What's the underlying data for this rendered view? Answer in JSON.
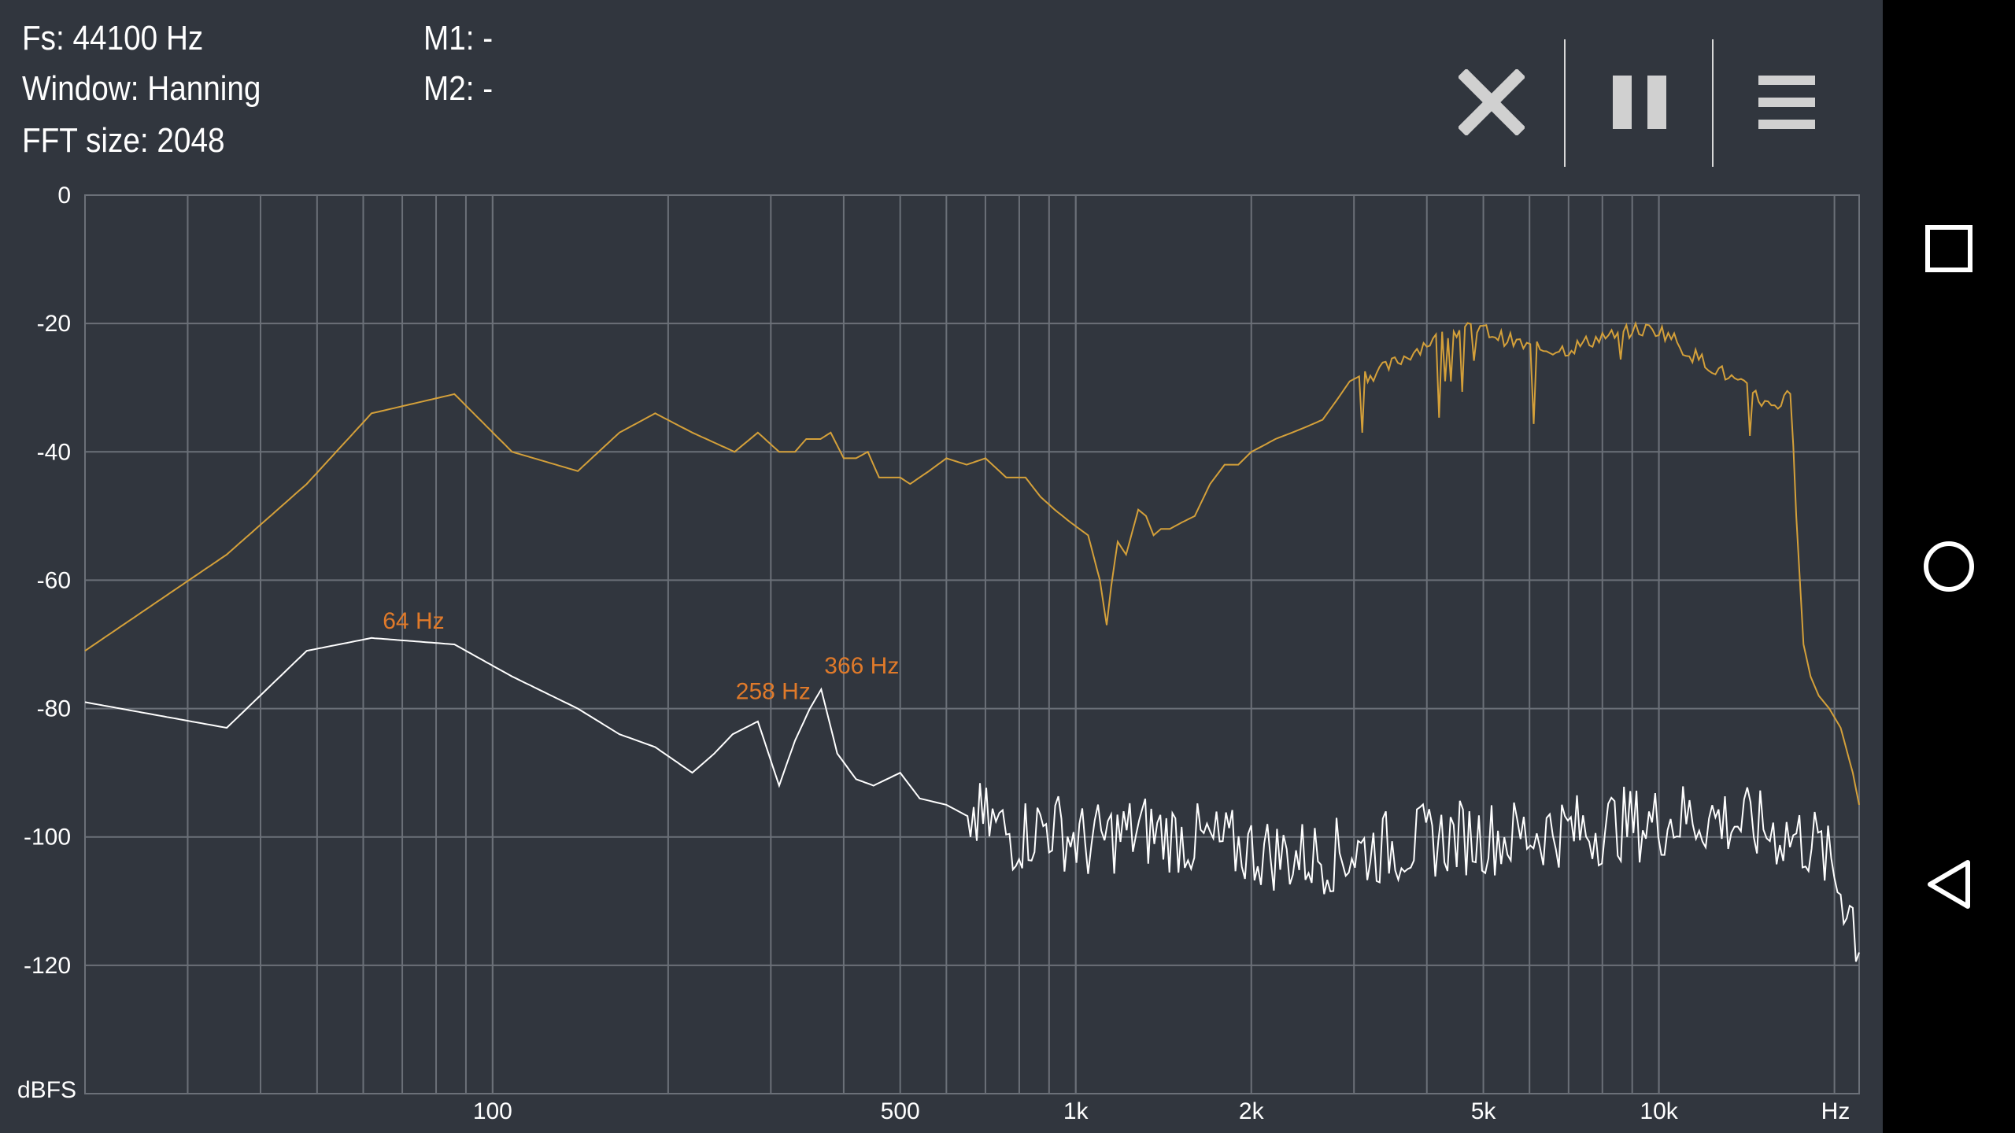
{
  "info": {
    "fs": "Fs: 44100 Hz",
    "window": "Window: Hanning",
    "fft": "FFT size: 2048",
    "m1": "M1: -",
    "m2": "M2: -"
  },
  "toolbar": {
    "close_icon": "close-icon",
    "pause_icon": "pause-icon",
    "menu_icon": "menu-icon"
  },
  "navbar": {
    "recents_icon": "recents-square-icon",
    "home_icon": "home-circle-icon",
    "back_icon": "back-triangle-icon"
  },
  "chart_data": {
    "type": "line",
    "xscale": "log",
    "xlim": [
      20,
      22050
    ],
    "ylim": [
      -140,
      0
    ],
    "xlabel": "Hz",
    "ylabel": "dBFS",
    "y_ticks": [
      0,
      -20,
      -40,
      -60,
      -80,
      -100,
      -120
    ],
    "y_tick_labels": [
      "0",
      "-20",
      "-40",
      "-60",
      "-80",
      "-100",
      "-120"
    ],
    "x_ticks": [
      100,
      500,
      1000,
      2000,
      5000,
      10000
    ],
    "x_tick_labels": [
      "100",
      "500",
      "1k",
      "2k",
      "5k",
      "10k"
    ],
    "grid": true,
    "colors": {
      "peak_hold": "#d4a03a",
      "live": "#ffffff",
      "marker": "#e07a2a",
      "grid": "#6b7078"
    },
    "series": [
      {
        "name": "",
        "color": "#d4a03a",
        "x": [
          20,
          35,
          48,
          62,
          86,
          108,
          140,
          165,
          190,
          220,
          260,
          285,
          310,
          330,
          345,
          365,
          380,
          400,
          420,
          440,
          460,
          500,
          520,
          560,
          600,
          650,
          700,
          760,
          820,
          870,
          920,
          980,
          1050,
          1100,
          1130,
          1150,
          1180,
          1220,
          1280,
          1320,
          1360,
          1400,
          1450,
          1520,
          1600,
          1700,
          1800,
          1900,
          2000,
          2100,
          2200,
          2350,
          2500,
          2650,
          2800,
          2950,
          3100,
          3200,
          3400,
          3700,
          4000,
          4300,
          4550,
          4700,
          5000,
          5300,
          5700,
          6100,
          6500,
          7000,
          7500,
          8000,
          8500,
          9000,
          9500,
          10000,
          10500,
          11000,
          12000,
          12500,
          13000,
          14000,
          15000,
          16000,
          16800,
          17200,
          17700,
          18200,
          18800,
          19600,
          20500,
          21500,
          22050
        ],
        "y": [
          -71,
          -56,
          -45,
          -34,
          -31,
          -40,
          -43,
          -37,
          -34,
          -37,
          -40,
          -37,
          -40,
          -40,
          -38,
          -38,
          -37,
          -41,
          -41,
          -40,
          -44,
          -44,
          -45,
          -43,
          -41,
          -42,
          -41,
          -44,
          -44,
          -47,
          -49,
          -51,
          -53,
          -60,
          -67,
          -61,
          -54,
          -56,
          -49,
          -50,
          -53,
          -52,
          -52,
          -51,
          -50,
          -45,
          -42,
          -42,
          -40,
          -39,
          -38,
          -37,
          -36,
          -35,
          -32,
          -29,
          -28,
          -28,
          -27,
          -25,
          -23,
          -22,
          -21,
          -21,
          -21,
          -22,
          -23,
          -24,
          -24,
          -24,
          -23,
          -22,
          -22,
          -21,
          -21,
          -21,
          -22,
          -24,
          -26,
          -27,
          -28,
          -30,
          -32,
          -34,
          -30,
          -50,
          -70,
          -75,
          -78,
          -80,
          -83,
          -90,
          -95
        ]
      },
      {
        "name": "",
        "color": "#ffffff",
        "x": [
          20,
          35,
          48,
          62,
          86,
          108,
          140,
          165,
          190,
          220,
          240,
          258,
          285,
          310,
          330,
          350,
          366,
          390,
          420,
          450,
          500,
          540,
          600,
          660,
          720,
          780,
          840,
          900,
          980,
          1050,
          1150,
          1300,
          1500,
          1700,
          2000,
          2300,
          2700,
          3200,
          3800,
          4500,
          5500,
          6500,
          7500,
          8500,
          9500,
          11000,
          12500,
          14000,
          15500,
          17000,
          18500,
          19500,
          20500,
          21500,
          22050
        ],
        "y": [
          -79,
          -83,
          -71,
          -69,
          -70,
          -75,
          -80,
          -84,
          -86,
          -90,
          -87,
          -84,
          -82,
          -92,
          -85,
          -80,
          -77,
          -87,
          -91,
          -92,
          -90,
          -94,
          -95,
          -97,
          -98,
          -100,
          -99,
          -98,
          -100,
          -101,
          -100,
          -99,
          -100,
          -101,
          -102,
          -103,
          -103,
          -102,
          -101,
          -100,
          -100,
          -99,
          -99,
          -98,
          -98,
          -97,
          -97,
          -98,
          -99,
          -100,
          -101,
          -104,
          -108,
          -112,
          -118
        ]
      }
    ],
    "markers": [
      {
        "label": "64 Hz",
        "x": 64,
        "y": -69
      },
      {
        "label": "258 Hz",
        "x": 258,
        "y": -80
      },
      {
        "label": "366 Hz",
        "x": 366,
        "y": -76
      }
    ]
  }
}
